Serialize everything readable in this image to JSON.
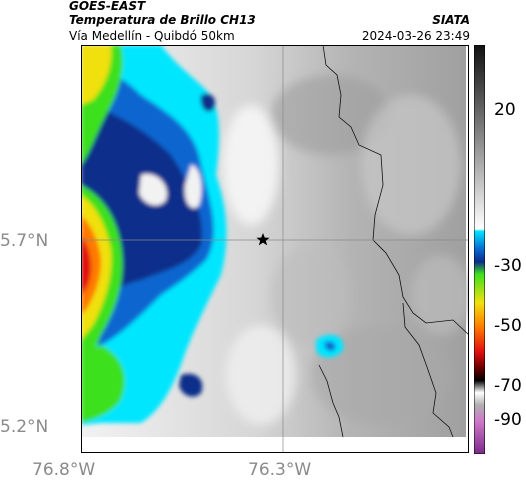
{
  "header": {
    "source": "GOES-EAST",
    "product": "Temperatura de Brillo CH13",
    "region": "Vía Medellín - Quibdó 50km",
    "org": "SIATA",
    "datetime": "2024-03-26 23:49"
  },
  "axes": {
    "lat_labels": [
      "5.7°N",
      "5.2°N"
    ],
    "lon_labels": [
      "76.8°W",
      "76.3°W"
    ]
  },
  "colorbar": {
    "tick_labels": [
      "20",
      "-30",
      "-50",
      "-70",
      "-90"
    ],
    "ticks_values": [
      20,
      -30,
      -50,
      -70,
      -90
    ],
    "range": [
      30,
      -92
    ],
    "units_hint": "brightness temperature"
  },
  "colors": {
    "cold_blue": "#0b2e8a",
    "cyan": "#00e6ff",
    "green": "#3de01e",
    "yellow": "#f0e010",
    "orange": "#ff7a00",
    "red": "#e01010",
    "gray_light": "#e6e6e6",
    "gray_mid": "#a9a9a9"
  },
  "map": {
    "marker": "star-icon"
  }
}
